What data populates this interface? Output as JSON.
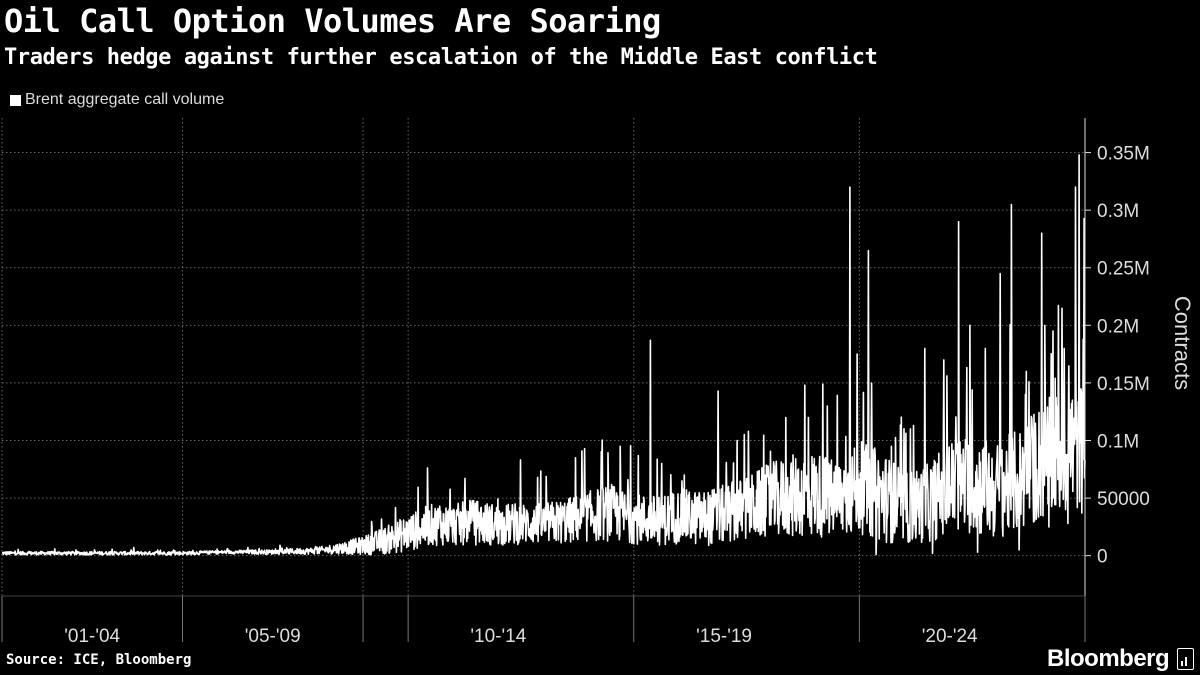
{
  "header": {
    "title": "Oil Call Option Volumes Are Soaring",
    "subtitle": "Traders hedge against further escalation of the Middle East conflict"
  },
  "footer": {
    "source": "Source: ICE, Bloomberg",
    "logo": "Bloomberg"
  },
  "colors": {
    "background": "#000000",
    "series": "#ffffff",
    "grid": "#666666",
    "text": "#dddddd"
  },
  "chart_data": {
    "type": "line",
    "title": "Oil Call Option Volumes Are Soaring",
    "subtitle": "Traders hedge against further escalation of the Middle East conflict",
    "ylabel": "Contracts",
    "xlabel": "",
    "legend": {
      "placement": "top-left",
      "entries": [
        "Brent aggregate call volume"
      ]
    },
    "y_axis": {
      "position": "right",
      "range": [
        -35000,
        380000
      ],
      "ticks": [
        {
          "value": 0,
          "label": "0"
        },
        {
          "value": 50000,
          "label": "50000"
        },
        {
          "value": 100000,
          "label": "0.1M"
        },
        {
          "value": 150000,
          "label": "0.15M"
        },
        {
          "value": 200000,
          "label": "0.2M"
        },
        {
          "value": 250000,
          "label": "0.25M"
        },
        {
          "value": 300000,
          "label": "0.3M"
        },
        {
          "value": 350000,
          "label": "0.35M"
        }
      ],
      "grid": true
    },
    "x_axis": {
      "range": [
        "2001-01-01",
        "2024-12-31"
      ],
      "ticks": [
        "2001-01-01",
        "2005-01-01",
        "2009-01-01",
        "2010-01-01",
        "2015-01-01",
        "2020-01-01",
        "2025-01-01"
      ],
      "period_labels": [
        {
          "label": "'01-'04",
          "center": "2003-01-01"
        },
        {
          "label": "'05-'09",
          "center": "2007-01-01"
        },
        {
          "label": "'10-'14",
          "center": "2012-01-01"
        },
        {
          "label": "'15-'19",
          "center": "2017-01-01"
        },
        {
          "label": "'20-'24",
          "center": "2022-01-01"
        }
      ],
      "grid": true
    },
    "series": [
      {
        "name": "Brent aggregate call volume",
        "x": [
          "2001-01",
          "2002-01",
          "2003-01",
          "2004-01",
          "2005-01",
          "2006-01",
          "2007-01",
          "2008-01",
          "2008-07",
          "2009-01",
          "2009-07",
          "2010-01",
          "2010-07",
          "2011-01",
          "2011-07",
          "2012-01",
          "2012-07",
          "2013-01",
          "2013-07",
          "2014-01",
          "2014-07",
          "2015-01",
          "2015-07",
          "2016-01",
          "2016-07",
          "2017-01",
          "2017-07",
          "2018-01",
          "2018-07",
          "2019-01",
          "2019-07",
          "2020-01",
          "2020-07",
          "2021-01",
          "2021-07",
          "2022-01",
          "2022-07",
          "2023-01",
          "2023-07",
          "2024-01",
          "2024-07",
          "2024-12"
        ],
        "base": [
          2000,
          2000,
          2000,
          2000,
          2000,
          3000,
          3000,
          4000,
          6000,
          8000,
          12000,
          18000,
          25000,
          25000,
          27000,
          25000,
          26000,
          26000,
          28000,
          32000,
          35000,
          30000,
          28000,
          32000,
          30000,
          33000,
          38000,
          45000,
          48000,
          50000,
          45000,
          55000,
          48000,
          38000,
          42000,
          55000,
          58000,
          52000,
          60000,
          75000,
          85000,
          90000
        ],
        "spread": [
          1500,
          1500,
          1500,
          1500,
          1500,
          1500,
          2000,
          3000,
          5000,
          8000,
          12000,
          16000,
          18000,
          18000,
          20000,
          18000,
          18000,
          18000,
          20000,
          22000,
          25000,
          22000,
          22000,
          24000,
          24000,
          26000,
          28000,
          32000,
          36000,
          38000,
          34000,
          40000,
          40000,
          32000,
          34000,
          42000,
          44000,
          42000,
          45000,
          52000,
          55000,
          60000
        ],
        "peaks": [
          {
            "x": "2006-06",
            "y": 7000
          },
          {
            "x": "2007-12",
            "y": 8000
          },
          {
            "x": "2009-03",
            "y": 25000
          },
          {
            "x": "2010-09",
            "y": 43000
          },
          {
            "x": "2011-05",
            "y": 48000
          },
          {
            "x": "2012-05",
            "y": 45000
          },
          {
            "x": "2012-11",
            "y": 68000
          },
          {
            "x": "2013-09",
            "y": 85000
          },
          {
            "x": "2014-04",
            "y": 72000
          },
          {
            "x": "2014-09",
            "y": 95000
          },
          {
            "x": "2015-05",
            "y": 187000
          },
          {
            "x": "2015-08",
            "y": 80000
          },
          {
            "x": "2016-02",
            "y": 70000
          },
          {
            "x": "2016-11",
            "y": 143000
          },
          {
            "x": "2017-04",
            "y": 100000
          },
          {
            "x": "2017-07",
            "y": 108000
          },
          {
            "x": "2018-05",
            "y": 120000
          },
          {
            "x": "2018-10",
            "y": 148000
          },
          {
            "x": "2019-04",
            "y": 130000
          },
          {
            "x": "2019-10",
            "y": 320000
          },
          {
            "x": "2019-12",
            "y": 175000
          },
          {
            "x": "2020-03",
            "y": 265000
          },
          {
            "x": "2020-09",
            "y": 95000
          },
          {
            "x": "2021-03",
            "y": 113000
          },
          {
            "x": "2021-06",
            "y": 180000
          },
          {
            "x": "2021-11",
            "y": 170000
          },
          {
            "x": "2022-03",
            "y": 290000
          },
          {
            "x": "2022-06",
            "y": 200000
          },
          {
            "x": "2022-10",
            "y": 180000
          },
          {
            "x": "2023-02",
            "y": 245000
          },
          {
            "x": "2023-05",
            "y": 305000
          },
          {
            "x": "2023-09",
            "y": 160000
          },
          {
            "x": "2024-01",
            "y": 280000
          },
          {
            "x": "2024-04",
            "y": 195000
          },
          {
            "x": "2024-07",
            "y": 180000
          },
          {
            "x": "2024-10",
            "y": 320000
          },
          {
            "x": "2024-11",
            "y": 348000
          }
        ],
        "dips": [
          {
            "x": "2020-05",
            "y": 1000
          },
          {
            "x": "2021-08",
            "y": 2000
          },
          {
            "x": "2022-08",
            "y": 3000
          },
          {
            "x": "2023-07",
            "y": 5000
          },
          {
            "x": "2024-03",
            "y": 25000
          },
          {
            "x": "2024-08",
            "y": 28000
          }
        ]
      }
    ]
  }
}
